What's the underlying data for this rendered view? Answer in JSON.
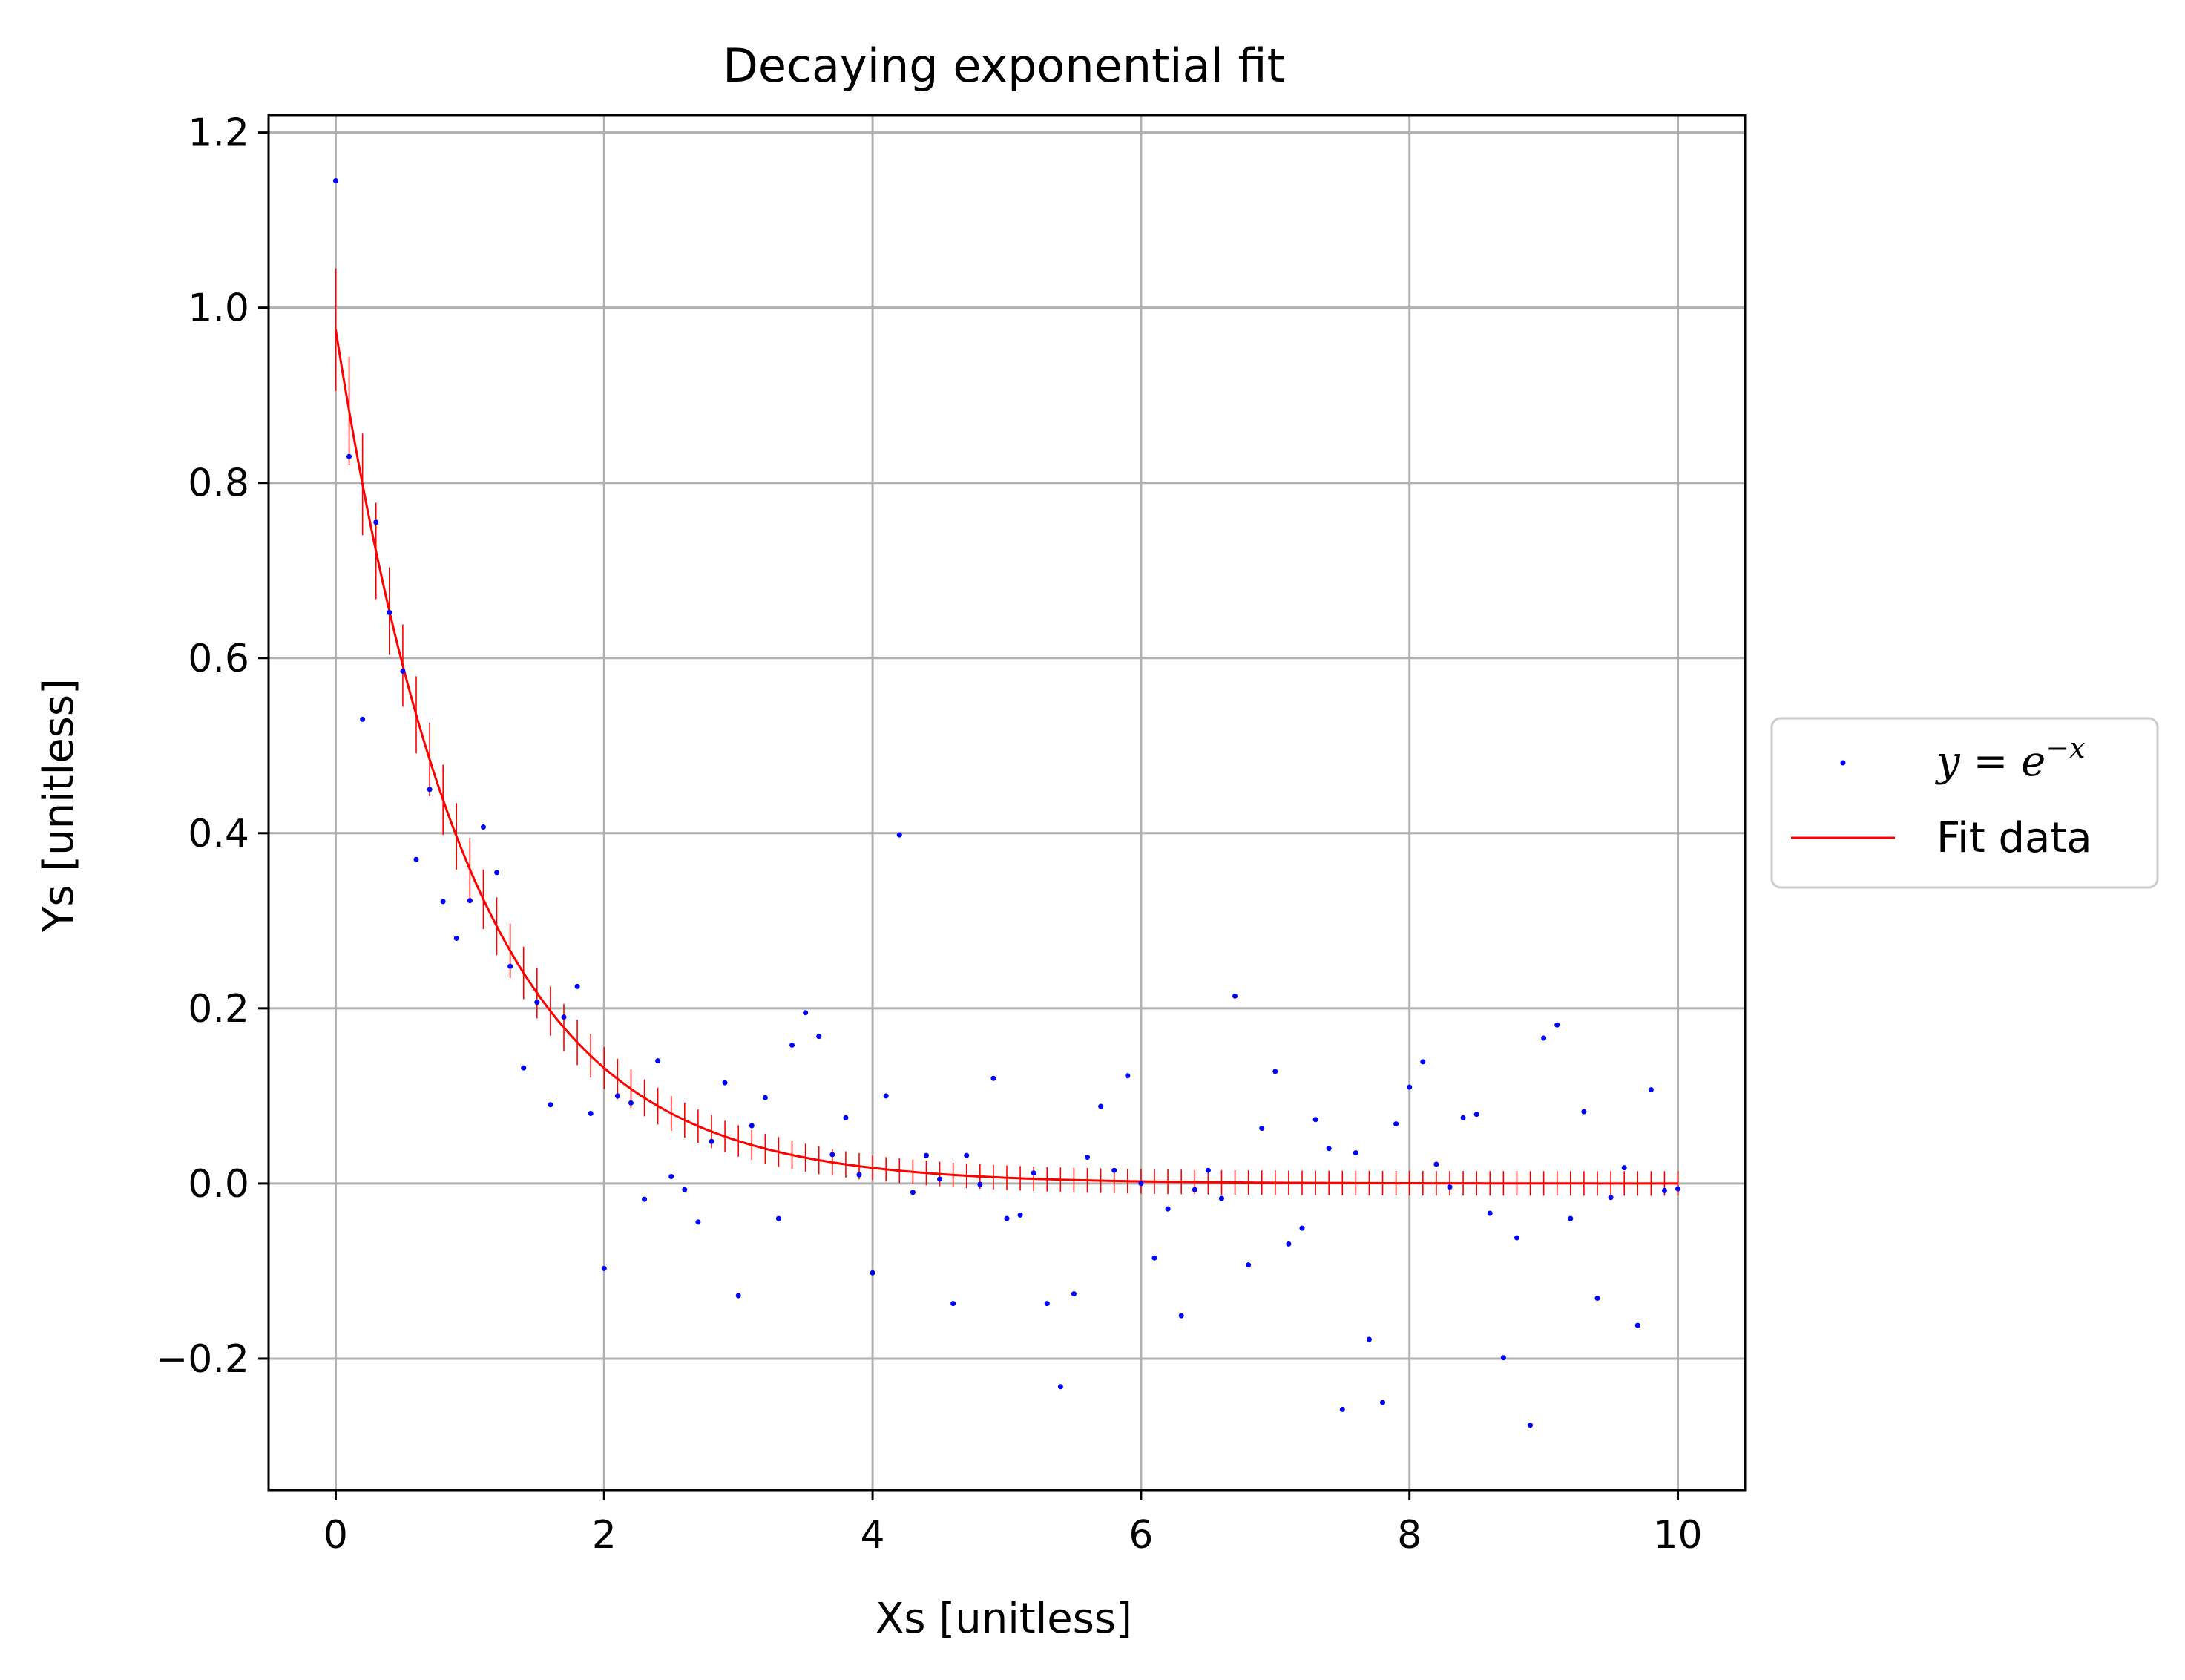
{
  "chart_data": {
    "type": "scatter",
    "title": "Decaying exponential fit",
    "xlabel": "Xs [unitless]",
    "ylabel": "Ys [unitless]",
    "xlim": [
      -0.5,
      10.5
    ],
    "ylim": [
      -0.35,
      1.22
    ],
    "grid": true,
    "legend_position": "right",
    "x_ticks": [
      0,
      2,
      4,
      6,
      8,
      10
    ],
    "x_tick_labels": [
      "0",
      "2",
      "4",
      "6",
      "8",
      "10"
    ],
    "y_ticks": [
      -0.2,
      0.0,
      0.2,
      0.4,
      0.6,
      0.8,
      1.0,
      1.2
    ],
    "y_tick_labels": [
      "−0.2",
      "0.0",
      "0.2",
      "0.4",
      "0.6",
      "0.8",
      "1.0",
      "1.2"
    ],
    "colors": {
      "scatter": "#0000ff",
      "fit": "#ff0000",
      "grid": "#b0b0b0"
    },
    "series": [
      {
        "name": "y = e^{-x}",
        "legend_base": "y = e",
        "legend_exp": "−x",
        "kind": "scatter",
        "x": [
          0.0,
          0.1,
          0.2,
          0.3,
          0.4,
          0.5,
          0.6,
          0.7,
          0.8,
          0.9,
          1.0,
          1.1,
          1.2,
          1.3,
          1.4,
          1.5,
          1.6,
          1.7,
          1.8,
          1.9,
          2.0,
          2.1,
          2.2,
          2.3,
          2.4,
          2.5,
          2.6,
          2.7,
          2.8,
          2.9,
          3.0,
          3.1,
          3.2,
          3.3,
          3.4,
          3.5,
          3.6,
          3.7,
          3.8,
          3.9,
          4.0,
          4.1,
          4.2,
          4.3,
          4.4,
          4.5,
          4.6,
          4.7,
          4.8,
          4.9,
          5.0,
          5.1,
          5.2,
          5.3,
          5.4,
          5.5,
          5.6,
          5.7,
          5.8,
          5.9,
          6.0,
          6.1,
          6.2,
          6.3,
          6.4,
          6.5,
          6.6,
          6.7,
          6.8,
          6.9,
          7.0,
          7.1,
          7.2,
          7.3,
          7.4,
          7.5,
          7.6,
          7.7,
          7.8,
          7.9,
          8.0,
          8.1,
          8.2,
          8.3,
          8.4,
          8.5,
          8.6,
          8.7,
          8.8,
          8.9,
          9.0,
          9.1,
          9.2,
          9.3,
          9.4,
          9.5,
          9.6,
          9.7,
          9.8,
          9.9,
          10.0
        ],
        "y": [
          1.145,
          0.83,
          0.53,
          0.755,
          0.652,
          0.585,
          0.37,
          0.45,
          0.322,
          0.28,
          0.323,
          0.407,
          0.355,
          0.248,
          0.132,
          0.207,
          0.09,
          0.19,
          0.225,
          0.08,
          -0.097,
          0.1,
          0.092,
          -0.018,
          0.14,
          0.008,
          -0.007,
          -0.044,
          0.048,
          0.115,
          -0.128,
          0.066,
          0.098,
          -0.04,
          0.158,
          0.195,
          0.168,
          0.033,
          0.075,
          0.01,
          -0.102,
          0.1,
          0.398,
          -0.01,
          0.032,
          0.005,
          -0.137,
          0.032,
          -0.001,
          0.12,
          -0.04,
          -0.036,
          0.012,
          -0.137,
          -0.232,
          -0.126,
          0.03,
          0.088,
          0.015,
          0.123,
          0.0,
          -0.085,
          -0.029,
          -0.151,
          -0.007,
          0.015,
          -0.017,
          0.214,
          -0.093,
          0.063,
          0.128,
          -0.069,
          -0.051,
          0.073,
          0.04,
          -0.258,
          0.035,
          -0.178,
          -0.25,
          0.068,
          0.11,
          0.139,
          0.022,
          -0.004,
          0.075,
          0.079,
          -0.034,
          -0.199,
          -0.062,
          -0.276,
          0.166,
          0.181,
          -0.04,
          0.082,
          -0.131,
          -0.016,
          0.018,
          -0.162,
          0.107,
          -0.008,
          -0.006
        ]
      },
      {
        "name": "Fit data",
        "kind": "line",
        "model": "y = A*exp(-k*x)",
        "params": {
          "A": 0.975,
          "k": 1.0
        },
        "x_range": [
          0,
          10
        ],
        "errorbar_step": 0.1,
        "errorbar_halfwidths": [
          0.07,
          0.062,
          0.058,
          0.055,
          0.05,
          0.047,
          0.044,
          0.042,
          0.04,
          0.038,
          0.036,
          0.034,
          0.033,
          0.031,
          0.03,
          0.029,
          0.028,
          0.027,
          0.026,
          0.025,
          0.024,
          0.023,
          0.022,
          0.021,
          0.021,
          0.02,
          0.02,
          0.019,
          0.019,
          0.018,
          0.018,
          0.017,
          0.017,
          0.017,
          0.016,
          0.016,
          0.016,
          0.015,
          0.015,
          0.015,
          0.014
        ]
      }
    ]
  }
}
